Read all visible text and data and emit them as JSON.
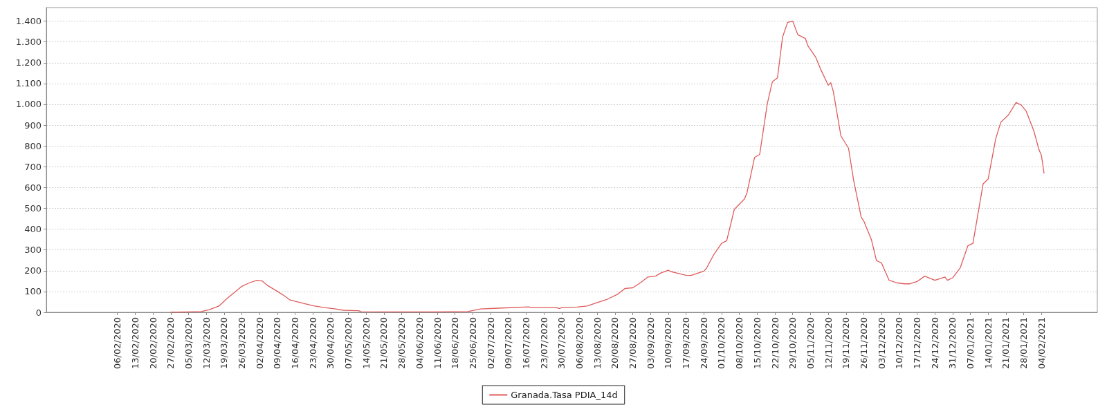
{
  "chart_data": {
    "type": "line",
    "x": [
      "2020-02-27",
      "2020-03-05",
      "2020-03-10",
      "2020-03-13",
      "2020-03-17",
      "2020-03-20",
      "2020-03-23",
      "2020-03-26",
      "2020-03-29",
      "2020-04-01",
      "2020-04-03",
      "2020-04-05",
      "2020-04-09",
      "2020-04-12",
      "2020-04-14",
      "2020-04-18",
      "2020-04-23",
      "2020-04-27",
      "2020-05-02",
      "2020-05-05",
      "2020-05-11",
      "2020-05-12",
      "2020-05-26",
      "2020-06-10",
      "2020-06-23",
      "2020-06-28",
      "2020-07-05",
      "2020-07-17",
      "2020-07-18",
      "2020-07-28",
      "2020-07-29",
      "2020-07-30",
      "2020-08-05",
      "2020-08-09",
      "2020-08-13",
      "2020-08-17",
      "2020-08-21",
      "2020-08-24",
      "2020-08-27",
      "2020-08-30",
      "2020-09-02",
      "2020-09-05",
      "2020-09-07",
      "2020-09-10",
      "2020-09-11",
      "2020-09-13",
      "2020-09-17",
      "2020-09-19",
      "2020-09-22",
      "2020-09-24",
      "2020-09-25",
      "2020-09-28",
      "2020-10-01",
      "2020-10-03",
      "2020-10-06",
      "2020-10-10",
      "2020-10-11",
      "2020-10-14",
      "2020-10-16",
      "2020-10-19",
      "2020-10-21",
      "2020-10-23",
      "2020-10-25",
      "2020-10-27",
      "2020-10-29",
      "2020-10-31",
      "2020-11-03",
      "2020-11-04",
      "2020-11-07",
      "2020-11-09",
      "2020-11-12",
      "2020-11-13",
      "2020-11-14",
      "2020-11-17",
      "2020-11-20",
      "2020-11-22",
      "2020-11-25",
      "2020-11-26",
      "2020-11-29",
      "2020-12-01",
      "2020-12-03",
      "2020-12-06",
      "2020-12-09",
      "2020-12-12",
      "2020-12-14",
      "2020-12-17",
      "2020-12-20",
      "2020-12-24",
      "2020-12-28",
      "2020-12-29",
      "2020-12-31",
      "2021-01-03",
      "2021-01-06",
      "2021-01-08",
      "2021-01-12",
      "2021-01-14",
      "2021-01-17",
      "2021-01-19",
      "2021-01-22",
      "2021-01-25",
      "2021-01-27",
      "2021-01-29",
      "2021-02-01",
      "2021-02-03",
      "2021-02-04",
      "2021-02-05"
    ],
    "series": [
      {
        "name": "Granada.Tasa PDIA_14d",
        "color": "#e05a5a",
        "values": [
          1,
          2,
          4,
          12,
          30,
          65,
          95,
          125,
          142,
          154,
          151,
          130,
          101,
          77,
          59,
          47,
          32,
          24,
          16,
          10,
          8,
          3,
          2,
          2,
          4,
          16,
          20,
          26,
          23,
          23,
          18,
          23,
          25,
          30,
          47,
          63,
          87,
          115,
          118,
          142,
          170,
          174,
          189,
          202,
          196,
          190,
          178,
          177,
          190,
          198,
          211,
          279,
          332,
          344,
          495,
          545,
          575,
          745,
          759,
          1003,
          1109,
          1127,
          1323,
          1394,
          1400,
          1335,
          1317,
          1281,
          1228,
          1169,
          1092,
          1104,
          1062,
          848,
          789,
          635,
          457,
          439,
          350,
          249,
          237,
          154,
          142,
          137,
          137,
          148,
          174,
          154,
          170,
          154,
          166,
          214,
          320,
          332,
          617,
          641,
          836,
          914,
          949,
          1009,
          997,
          967,
          872,
          783,
          753,
          670
        ]
      }
    ],
    "xlim": [
      "2020-01-09",
      "2021-02-26"
    ],
    "xticks": [
      {
        "value": "2020-02-06",
        "label": "06/02/2020"
      },
      {
        "value": "2020-02-13",
        "label": "13/02/2020"
      },
      {
        "value": "2020-02-20",
        "label": "20/02/2020"
      },
      {
        "value": "2020-02-27",
        "label": "27/02/2020"
      },
      {
        "value": "2020-03-05",
        "label": "05/03/2020"
      },
      {
        "value": "2020-03-12",
        "label": "12/03/2020"
      },
      {
        "value": "2020-03-19",
        "label": "19/03/2020"
      },
      {
        "value": "2020-03-26",
        "label": "26/03/2020"
      },
      {
        "value": "2020-04-02",
        "label": "02/04/2020"
      },
      {
        "value": "2020-04-09",
        "label": "09/04/2020"
      },
      {
        "value": "2020-04-16",
        "label": "16/04/2020"
      },
      {
        "value": "2020-04-23",
        "label": "23/04/2020"
      },
      {
        "value": "2020-04-30",
        "label": "30/04/2020"
      },
      {
        "value": "2020-05-07",
        "label": "07/05/2020"
      },
      {
        "value": "2020-05-14",
        "label": "14/05/2020"
      },
      {
        "value": "2020-05-21",
        "label": "21/05/2020"
      },
      {
        "value": "2020-05-28",
        "label": "28/05/2020"
      },
      {
        "value": "2020-06-04",
        "label": "04/06/2020"
      },
      {
        "value": "2020-06-11",
        "label": "11/06/2020"
      },
      {
        "value": "2020-06-18",
        "label": "18/06/2020"
      },
      {
        "value": "2020-06-25",
        "label": "25/06/2020"
      },
      {
        "value": "2020-07-02",
        "label": "02/07/2020"
      },
      {
        "value": "2020-07-09",
        "label": "09/07/2020"
      },
      {
        "value": "2020-07-16",
        "label": "16/07/2020"
      },
      {
        "value": "2020-07-23",
        "label": "23/07/2020"
      },
      {
        "value": "2020-07-30",
        "label": "30/07/2020"
      },
      {
        "value": "2020-08-06",
        "label": "06/08/2020"
      },
      {
        "value": "2020-08-13",
        "label": "13/08/2020"
      },
      {
        "value": "2020-08-20",
        "label": "20/08/2020"
      },
      {
        "value": "2020-08-27",
        "label": "27/08/2020"
      },
      {
        "value": "2020-09-03",
        "label": "03/09/2020"
      },
      {
        "value": "2020-09-10",
        "label": "10/09/2020"
      },
      {
        "value": "2020-09-17",
        "label": "17/09/2020"
      },
      {
        "value": "2020-09-24",
        "label": "24/09/2020"
      },
      {
        "value": "2020-10-01",
        "label": "01/10/2020"
      },
      {
        "value": "2020-10-08",
        "label": "08/10/2020"
      },
      {
        "value": "2020-10-15",
        "label": "15/10/2020"
      },
      {
        "value": "2020-10-22",
        "label": "22/10/2020"
      },
      {
        "value": "2020-10-29",
        "label": "29/10/2020"
      },
      {
        "value": "2020-11-05",
        "label": "05/11/2020"
      },
      {
        "value": "2020-11-12",
        "label": "12/11/2020"
      },
      {
        "value": "2020-11-19",
        "label": "19/11/2020"
      },
      {
        "value": "2020-11-26",
        "label": "26/11/2020"
      },
      {
        "value": "2020-12-03",
        "label": "03/12/2020"
      },
      {
        "value": "2020-12-10",
        "label": "10/12/2020"
      },
      {
        "value": "2020-12-17",
        "label": "17/12/2020"
      },
      {
        "value": "2020-12-24",
        "label": "24/12/2020"
      },
      {
        "value": "2020-12-31",
        "label": "31/12/2020"
      },
      {
        "value": "2021-01-07",
        "label": "07/01/2021"
      },
      {
        "value": "2021-01-14",
        "label": "14/01/2021"
      },
      {
        "value": "2021-01-21",
        "label": "21/01/2021"
      },
      {
        "value": "2021-01-28",
        "label": "28/01/2021"
      },
      {
        "value": "2021-02-04",
        "label": "04/02/2021"
      }
    ],
    "ylim": [
      0,
      1465
    ],
    "yticks": [
      0,
      100,
      200,
      300,
      400,
      500,
      600,
      700,
      800,
      900,
      {
        "value": 1000,
        "label": "1.000"
      },
      {
        "value": 1100,
        "label": "1.100"
      },
      {
        "value": 1200,
        "label": "1.200"
      },
      {
        "value": 1300,
        "label": "1.300"
      },
      {
        "value": 1400,
        "label": "1.400"
      }
    ],
    "grid": "y",
    "legend": "bottom",
    "marker": "none",
    "line_style": "solid"
  }
}
